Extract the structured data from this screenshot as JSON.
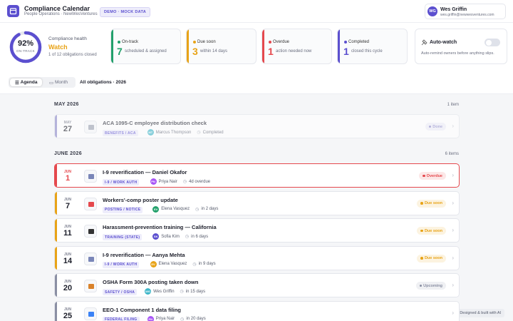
{
  "header": {
    "title": "Compliance Calendar",
    "subtitle": "People Operations · NewWesVentures",
    "badge": "DEMO · MOCK DATA",
    "user": {
      "initials": "WG",
      "name": "Wes Griffin",
      "email": "wes.griffin@newwesventures.com"
    }
  },
  "summary": {
    "health": {
      "ring": {
        "value": 92,
        "label": "92%"
      },
      "ring_caption": "ON-TRACK",
      "title": "Compliance health",
      "status": "Watch",
      "detail": "1 of 12 obligations closed"
    },
    "cards": [
      {
        "label": "On-track",
        "count": 7,
        "detail": "scheduled & assigned",
        "color": "#22a06b"
      },
      {
        "label": "Due soon",
        "count": 3,
        "detail": "within 14 days",
        "color": "#e8a317"
      },
      {
        "label": "Overdue",
        "count": 1,
        "detail": "action needed now",
        "color": "#e5484d"
      },
      {
        "label": "Completed",
        "count": 1,
        "detail": "closed this cycle",
        "color": "#5b4fcf"
      }
    ],
    "auto_watch": {
      "title": "Auto-watch",
      "description": "Auto-remind owners before anything slips."
    }
  },
  "toolbar": {
    "tabs": [
      "Agenda",
      "Month"
    ],
    "scope": "All obligations · 2026"
  },
  "groups": [
    {
      "heading": "MAY 2026",
      "count": "1 item",
      "items": [
        {
          "month": "MAY",
          "day": 27,
          "title": "ACA 1095-C employee distribution check",
          "tag": "BENEFITS / ACA",
          "owner_initials": "MT",
          "owner": "Marcus Thompson",
          "due": "Completed",
          "status": "Done",
          "color": "#8b87c9"
        }
      ]
    },
    {
      "heading": "JUNE 2026",
      "count": "6 items",
      "items": [
        {
          "month": "JUN",
          "day": 1,
          "title": "I-9 reverification — Daniel Okafor",
          "tag": "I-9 / WORK AUTH",
          "owner_initials": "PN",
          "owner": "Priya Nair",
          "due": "4d overdue",
          "status": "Overdue",
          "color": "#e5484d"
        },
        {
          "month": "JUN",
          "day": 7,
          "title": "Workers'-comp poster update",
          "tag": "POSTING / NOTICE",
          "owner_initials": "EV",
          "owner": "Elena Vasquez",
          "due": "in 2 days",
          "status": "Due soon",
          "color": "#e8a317"
        },
        {
          "month": "JUN",
          "day": 11,
          "title": "Harassment-prevention training — California",
          "tag": "TRAINING (STATE)",
          "owner_initials": "SK",
          "owner": "Sofia Kim",
          "due": "in 6 days",
          "status": "Due soon",
          "color": "#e8a317"
        },
        {
          "month": "JUN",
          "day": 14,
          "title": "I-9 reverification — Aanya Mehta",
          "tag": "I-9 / WORK AUTH",
          "owner_initials": "EV",
          "owner": "Elena Vasquez",
          "due": "in 9 days",
          "status": "Due soon",
          "color": "#e8a317"
        },
        {
          "month": "JUN",
          "day": 20,
          "title": "OSHA Form 300A posting taken down",
          "tag": "SAFETY / OSHA",
          "owner_initials": "WG",
          "owner": "Wes Griffin",
          "due": "in 15 days",
          "status": "Upcoming",
          "color": "#8a8fa3"
        },
        {
          "month": "JUN",
          "day": 25,
          "title": "EEO-1 Component 1 data filing",
          "tag": "FEDERAL FILING",
          "owner_initials": "PN",
          "owner": "Priya Nair",
          "due": "in 20 days",
          "color": "#8a8fa3"
        }
      ]
    }
  ],
  "footer": "Created by Wes Griffin · Designed & built with AI"
}
